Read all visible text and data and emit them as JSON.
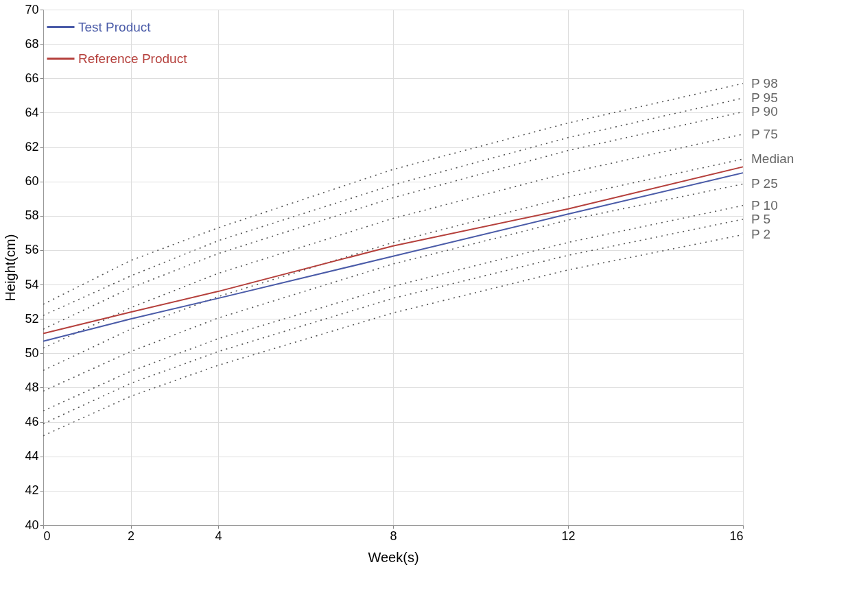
{
  "chart_data": {
    "type": "line",
    "xlabel": "Week(s)",
    "ylabel": "Height(cm)",
    "x": [
      0,
      2,
      4,
      8,
      12,
      16
    ],
    "xlim": [
      0,
      16
    ],
    "xticks": [
      0,
      2,
      4,
      8,
      12,
      16
    ],
    "ylim": [
      40,
      70
    ],
    "yticks": [
      40,
      42,
      44,
      46,
      48,
      50,
      52,
      54,
      56,
      58,
      60,
      62,
      64,
      66,
      68,
      70
    ],
    "grid": true,
    "legend": "top left",
    "marker": "none",
    "series": [
      {
        "name": "P 98",
        "color": "#555555",
        "line_style": "dotted",
        "values": [
          52.85,
          55.4,
          57.3,
          60.7,
          63.4,
          65.7
        ]
      },
      {
        "name": "P 95",
        "color": "#555555",
        "line_style": "dotted",
        "values": [
          52.2,
          54.5,
          56.55,
          59.8,
          62.55,
          64.85
        ]
      },
      {
        "name": "P 90",
        "color": "#555555",
        "line_style": "dotted",
        "values": [
          51.4,
          53.8,
          55.8,
          59.05,
          61.8,
          64.05
        ]
      },
      {
        "name": "P 75",
        "color": "#555555",
        "line_style": "dotted",
        "values": [
          50.3,
          52.65,
          54.65,
          57.85,
          60.5,
          62.75
        ]
      },
      {
        "name": "Median",
        "color": "#555555",
        "line_style": "dotted",
        "values": [
          49.0,
          51.4,
          53.3,
          56.45,
          59.1,
          61.3
        ]
      },
      {
        "name": "P 25",
        "color": "#555555",
        "line_style": "dotted",
        "values": [
          47.8,
          50.1,
          52.05,
          55.2,
          57.75,
          59.85
        ]
      },
      {
        "name": "P 10",
        "color": "#555555",
        "line_style": "dotted",
        "values": [
          46.65,
          48.95,
          50.85,
          53.9,
          56.45,
          58.6
        ]
      },
      {
        "name": "P 5",
        "color": "#555555",
        "line_style": "dotted",
        "values": [
          45.9,
          48.25,
          50.1,
          53.2,
          55.7,
          57.8
        ]
      },
      {
        "name": "P 2",
        "color": "#555555",
        "line_style": "dotted",
        "values": [
          45.2,
          47.5,
          49.3,
          52.35,
          54.85,
          56.9
        ]
      },
      {
        "name": "Test Product",
        "color": "#4a5ba8",
        "line_style": "solid",
        "values": [
          50.7,
          52.0,
          53.2,
          55.65,
          58.1,
          60.5
        ]
      },
      {
        "name": "Reference Product",
        "color": "#b5403c",
        "line_style": "solid",
        "values": [
          51.15,
          52.4,
          53.6,
          56.25,
          58.4,
          60.85
        ]
      }
    ]
  }
}
